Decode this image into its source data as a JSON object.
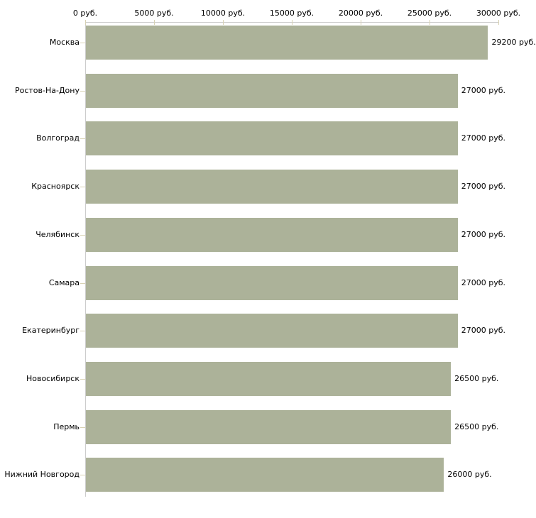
{
  "chart_data": {
    "type": "bar",
    "orientation": "horizontal",
    "title": "",
    "categories": [
      "Москва",
      "Ростов-На-Дону",
      "Волгоград",
      "Красноярск",
      "Челябинск",
      "Самара",
      "Екатеринбург",
      "Новосибирск",
      "Пермь",
      "Нижний Новгород"
    ],
    "values": [
      29200,
      27000,
      27000,
      27000,
      27000,
      27000,
      27000,
      26500,
      26500,
      26000
    ],
    "value_labels": [
      "29200 руб.",
      "27000 руб.",
      "27000 руб.",
      "27000 руб.",
      "27000 руб.",
      "27000 руб.",
      "27000 руб.",
      "26500 руб.",
      "26500 руб.",
      "26000 руб."
    ],
    "unit": "руб.",
    "xlim": [
      0,
      30000
    ],
    "x_tick_values": [
      0,
      5000,
      10000,
      15000,
      20000,
      25000,
      30000
    ],
    "x_tick_labels": [
      "0 руб.",
      "5000 руб.",
      "10000 руб.",
      "15000 руб.",
      "20000 руб.",
      "25000 руб.",
      "30000 руб."
    ],
    "grid": "off",
    "legend": "none",
    "colors": {
      "bar_fill": "#acb299",
      "axis_line": "#cccccc",
      "tick_mark": "#d8d2b4",
      "text": "#000000",
      "background": "#ffffff"
    }
  }
}
